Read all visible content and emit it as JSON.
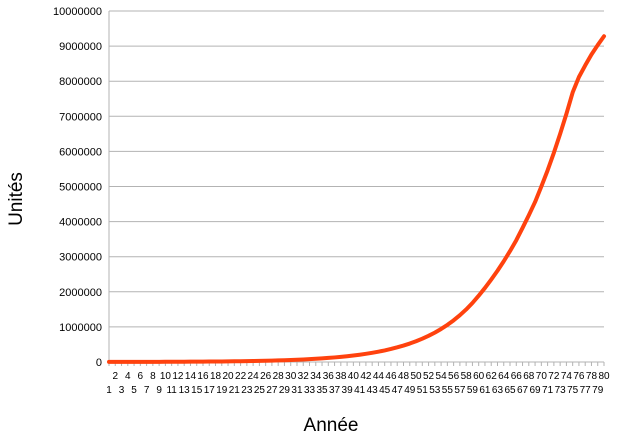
{
  "chart_data": {
    "type": "line",
    "title": "",
    "xlabel": "Année",
    "ylabel": "Unités",
    "ylim": [
      0,
      10000000
    ],
    "yticks": [
      "0",
      "1000000",
      "2000000",
      "3000000",
      "4000000",
      "5000000",
      "6000000",
      "7000000",
      "8000000",
      "9000000",
      "10000000"
    ],
    "grid": true,
    "legend": "none",
    "x": [
      1,
      2,
      3,
      4,
      5,
      6,
      7,
      8,
      9,
      10,
      11,
      12,
      13,
      14,
      15,
      16,
      17,
      18,
      19,
      20,
      21,
      22,
      23,
      24,
      25,
      26,
      27,
      28,
      29,
      30,
      31,
      32,
      33,
      34,
      35,
      36,
      37,
      38,
      39,
      40,
      41,
      42,
      43,
      44,
      45,
      46,
      47,
      48,
      49,
      50,
      51,
      52,
      53,
      54,
      55,
      56,
      57,
      58,
      59,
      60,
      61,
      62,
      63,
      64,
      65,
      66,
      67,
      68,
      69,
      70,
      71,
      72,
      73,
      74,
      75,
      76,
      77,
      78,
      79,
      80
    ],
    "series": [
      {
        "color": "#ff420e",
        "values": [
          2000,
          2200,
          2500,
          2800,
          3100,
          3500,
          3900,
          4400,
          5000,
          5600,
          6300,
          7100,
          8000,
          9000,
          10100,
          11300,
          12700,
          14300,
          16000,
          18000,
          20200,
          22700,
          25500,
          28700,
          32200,
          36200,
          40700,
          45700,
          51300,
          57700,
          64800,
          72800,
          81800,
          91800,
          103000,
          116000,
          130000,
          146000,
          164000,
          185000,
          207000,
          233000,
          262000,
          294000,
          330000,
          371000,
          417000,
          468000,
          526000,
          591000,
          664000,
          746000,
          838000,
          941000,
          1057000,
          1187000,
          1333000,
          1497000,
          1681000,
          1888000,
          2110000,
          2350000,
          2600000,
          2870000,
          3160000,
          3470000,
          3820000,
          4180000,
          4560000,
          5000000,
          5460000,
          5960000,
          6500000,
          7070000,
          7680000,
          8120000,
          8450000,
          8760000,
          9030000,
          9280000
        ]
      }
    ]
  }
}
